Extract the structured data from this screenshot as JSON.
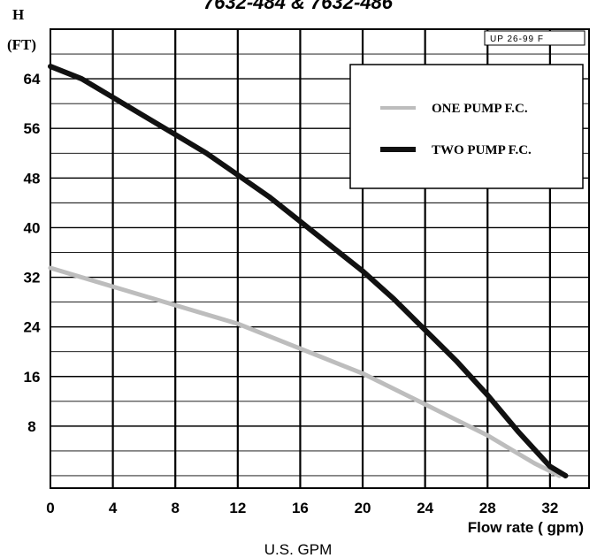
{
  "chart_data": {
    "type": "line",
    "title": "7632-484 & 7632-486",
    "ylabel_line1": "H",
    "ylabel_line2": "(FT)",
    "xlabel": "Flow rate ( gpm)",
    "subtitle": "U.S. GPM",
    "code_label": "UP 26-99 F",
    "xlim": [
      0,
      34.5
    ],
    "ylim": [
      -2,
      72
    ],
    "x_ticks": [
      0,
      4,
      8,
      12,
      16,
      20,
      24,
      28,
      32
    ],
    "y_ticks": [
      8,
      16,
      24,
      32,
      40,
      48,
      56,
      64
    ],
    "grid": true,
    "legend_position": "top-right",
    "series": [
      {
        "name": "ONE PUMP F.C.",
        "color": "#bdbdbd",
        "x": [
          0,
          4,
          8,
          12,
          16,
          20,
          24,
          28,
          31,
          32.6
        ],
        "y": [
          33.5,
          30.5,
          27.5,
          24.5,
          20.5,
          16.5,
          11.5,
          6.5,
          2,
          0
        ]
      },
      {
        "name": "TWO PUMP F.C.",
        "color": "#111111",
        "x": [
          0,
          2,
          4,
          6,
          8,
          10,
          12,
          14,
          16,
          18,
          20,
          22,
          24,
          26,
          28,
          30,
          32,
          33
        ],
        "y": [
          66,
          64,
          61,
          58,
          55,
          52,
          48.5,
          45,
          41,
          37,
          33,
          28.5,
          23.5,
          18.5,
          13,
          7,
          1.5,
          0
        ]
      }
    ]
  }
}
